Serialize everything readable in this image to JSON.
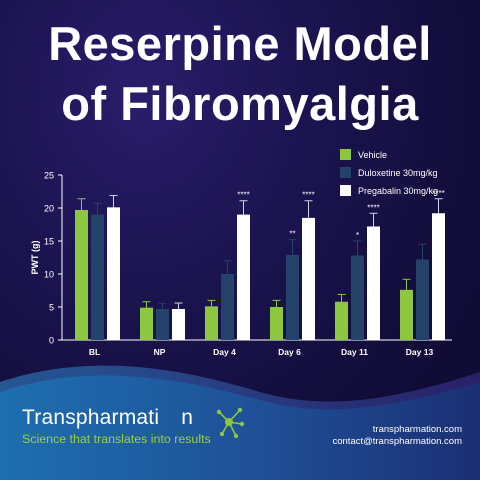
{
  "title_line1": "Reserpine Model",
  "title_line2": "of Fibromyalgia",
  "colors": {
    "vehicle": "#8dc63f",
    "duloxetine": "#25426a",
    "pregabalin": "#ffffff"
  },
  "chart_data": {
    "type": "bar",
    "categories": [
      "BL",
      "NP",
      "Day 4",
      "Day 6",
      "Day 11",
      "Day 13"
    ],
    "ylabel": "PWT (g)",
    "ylim": [
      0,
      25
    ],
    "yticks": [
      "0",
      "5",
      "10",
      "15",
      "20",
      "25"
    ],
    "series": [
      {
        "name": "Vehicle",
        "values": [
          19.7,
          4.9,
          5.1,
          5.0,
          5.8,
          7.6
        ],
        "errors": [
          1.7,
          0.9,
          0.9,
          1.0,
          1.1,
          1.6
        ]
      },
      {
        "name": "Duloxetine 30mg/kg",
        "values": [
          19.0,
          4.7,
          10.0,
          12.9,
          12.8,
          12.2
        ],
        "errors": [
          1.7,
          0.8,
          2.0,
          2.3,
          2.2,
          2.3
        ]
      },
      {
        "name": "Pregabalin 30mg/kg",
        "values": [
          20.1,
          4.7,
          19.0,
          18.5,
          17.2,
          19.2
        ],
        "errors": [
          1.8,
          0.9,
          2.1,
          2.6,
          2.0,
          2.2
        ]
      }
    ],
    "annotations": [
      {
        "category": "Day 4",
        "series": 2,
        "text": "****"
      },
      {
        "category": "Day 6",
        "series": 1,
        "text": "**"
      },
      {
        "category": "Day 6",
        "series": 2,
        "text": "****"
      },
      {
        "category": "Day 11",
        "series": 1,
        "text": "*"
      },
      {
        "category": "Day 11",
        "series": 2,
        "text": "****"
      },
      {
        "category": "Day 13",
        "series": 2,
        "text": "****"
      }
    ],
    "legend": "top-right"
  },
  "brand": {
    "name_prefix": "Transpharmati",
    "name_suffix": "n",
    "tagline": "Science that translates into results"
  },
  "contact": {
    "website": "transpharmation.com",
    "email": "contact@transpharmation.com"
  }
}
